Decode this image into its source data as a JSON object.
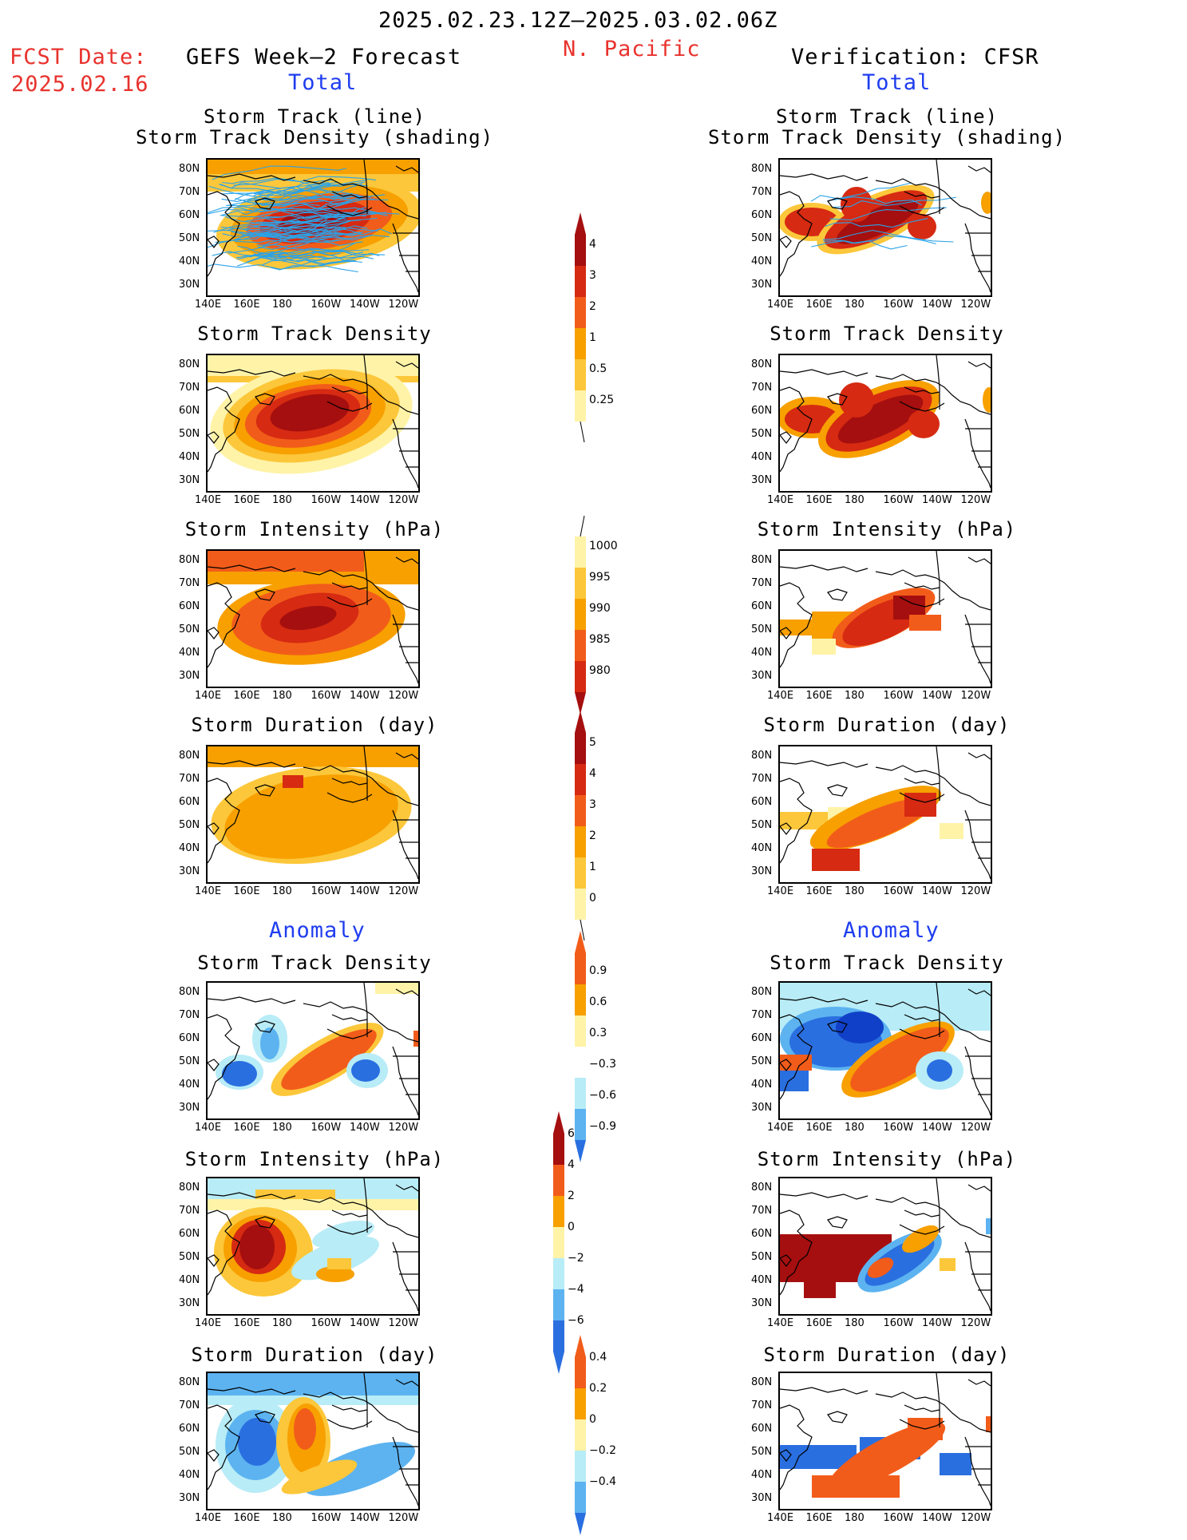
{
  "header": {
    "date_range": "2025.02.23.12Z–2025.03.02.06Z",
    "region": "N. Pacific",
    "fcst_label": "FCST Date:",
    "fcst_date": "2025.02.16",
    "left_title": "GEFS Week–2 Forecast",
    "right_title": "Verification: CFSR"
  },
  "sections": {
    "total": "Total",
    "anomaly": "Anomaly"
  },
  "panel_titles": {
    "track_line": "Storm Track (line)",
    "track_shading": "Storm Track Density (shading)",
    "density": "Storm Track Density",
    "intensity": "Storm Intensity (hPa)",
    "duration": "Storm Duration (day)"
  },
  "axes": {
    "lat": [
      "80N",
      "70N",
      "60N",
      "50N",
      "40N",
      "30N"
    ],
    "lon": [
      "140E",
      "160E",
      "180",
      "160W",
      "140W",
      "120W"
    ]
  },
  "colorbars": {
    "density_total": [
      "4",
      "3",
      "2",
      "1",
      "0.5",
      "0.25"
    ],
    "intensity_total": [
      "1000",
      "995",
      "990",
      "985",
      "980"
    ],
    "duration_total": [
      "5",
      "4",
      "3",
      "2",
      "1",
      "0"
    ],
    "density_anom": [
      "0.9",
      "0.6",
      "0.3",
      "−0.3",
      "−0.6",
      "−0.9"
    ],
    "intensity_anom": [
      "6",
      "4",
      "2",
      "0",
      "−2",
      "−4",
      "−6"
    ],
    "duration_anom": [
      "0.4",
      "0.2",
      "0",
      "−0.2",
      "−0.4"
    ]
  },
  "colors": {
    "dark_red": "#a50f0f",
    "red": "#d62a12",
    "orange_red": "#f25c1a",
    "orange": "#f7a000",
    "light_orange": "#fcc73a",
    "pale_yellow": "#fff3a8",
    "light_blue": "#b8ecf7",
    "mid_blue": "#5cb3f0",
    "blue": "#2a6fe0",
    "dark_blue": "#1040c8",
    "track_line": "#2aa3e8"
  }
}
